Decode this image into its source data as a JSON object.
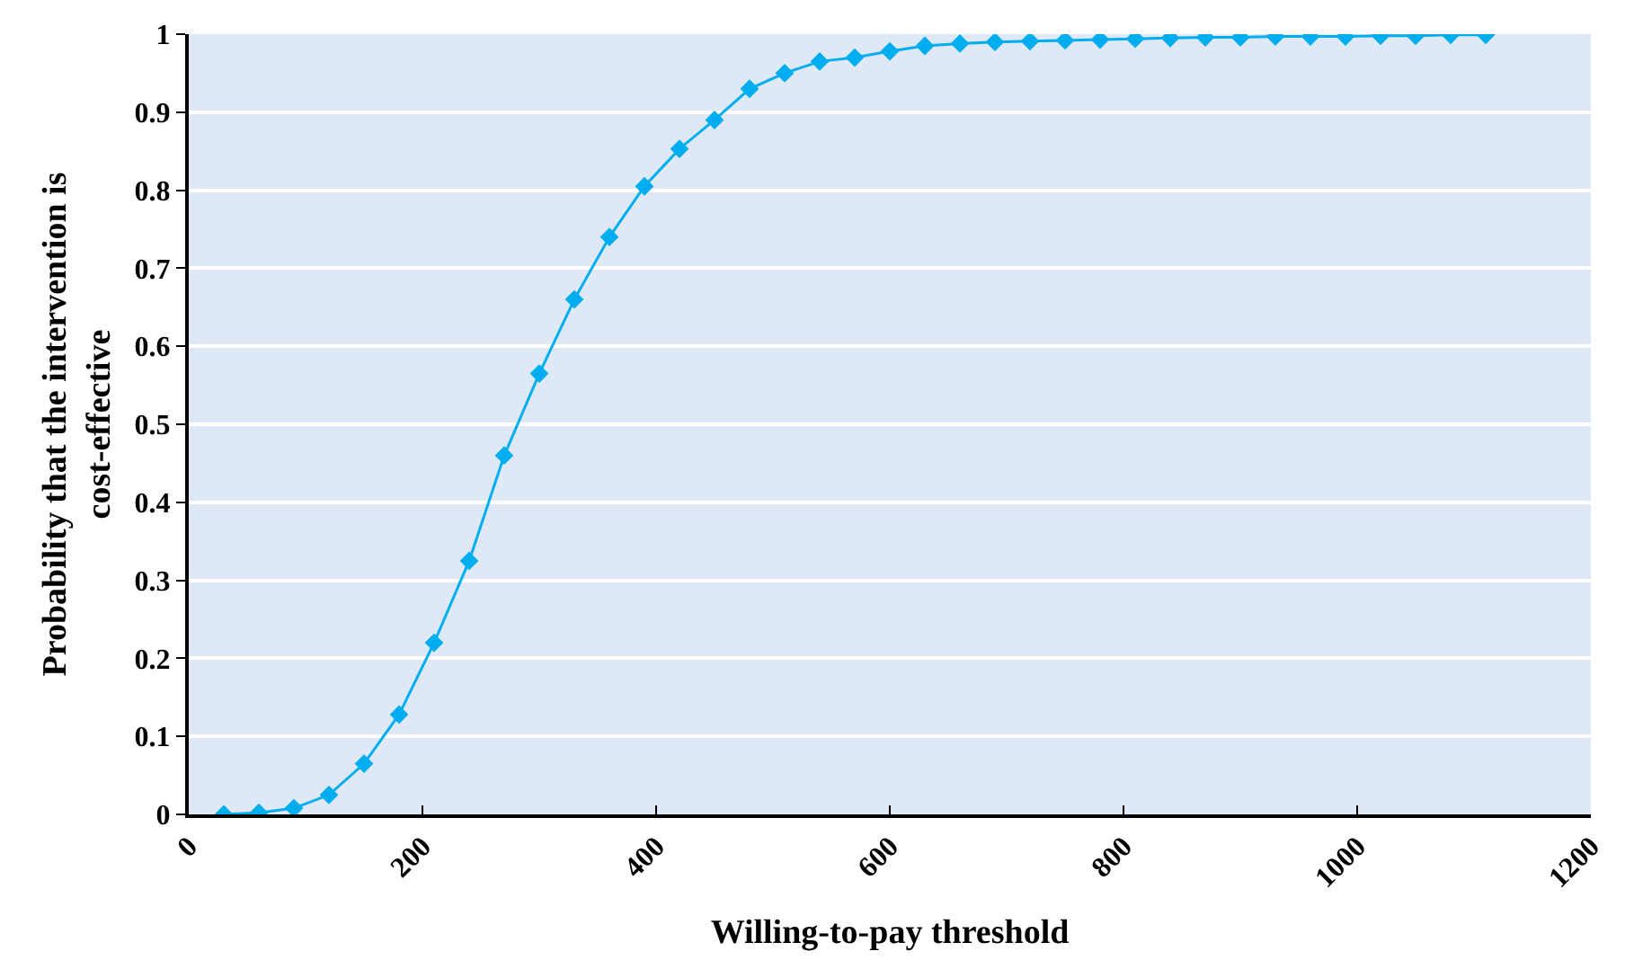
{
  "chart_data": {
    "type": "line",
    "xlabel": "Willing-to-pay threshold",
    "ylabel": "Probability that the intervention is cost-effective",
    "x": [
      30,
      60,
      90,
      120,
      150,
      180,
      210,
      240,
      270,
      300,
      330,
      360,
      390,
      420,
      450,
      480,
      510,
      540,
      570,
      600,
      630,
      660,
      690,
      720,
      750,
      780,
      810,
      840,
      870,
      900,
      930,
      960,
      990,
      1020,
      1050,
      1080,
      1110
    ],
    "series": [
      {
        "color": "#00aeef",
        "values": [
          0,
          0.002,
          0.008,
          0.025,
          0.065,
          0.128,
          0.22,
          0.325,
          0.46,
          0.565,
          0.66,
          0.74,
          0.805,
          0.853,
          0.89,
          0.93,
          0.95,
          0.965,
          0.97,
          0.978,
          0.985,
          0.988,
          0.99,
          0.991,
          0.992,
          0.993,
          0.994,
          0.995,
          0.996,
          0.996,
          0.997,
          0.997,
          0.997,
          0.998,
          0.998,
          0.999,
          0.999
        ]
      }
    ],
    "xlim": [
      0,
      1200
    ],
    "xticks": [
      0,
      200,
      400,
      600,
      800,
      1000,
      1200
    ],
    "ylim": [
      0,
      1
    ],
    "yticks": [
      0,
      0.1,
      0.2,
      0.3,
      0.4,
      0.5,
      0.6,
      0.7,
      0.8,
      0.9,
      1
    ],
    "grid": "y",
    "marker": "diamond",
    "line_style": "solid"
  }
}
